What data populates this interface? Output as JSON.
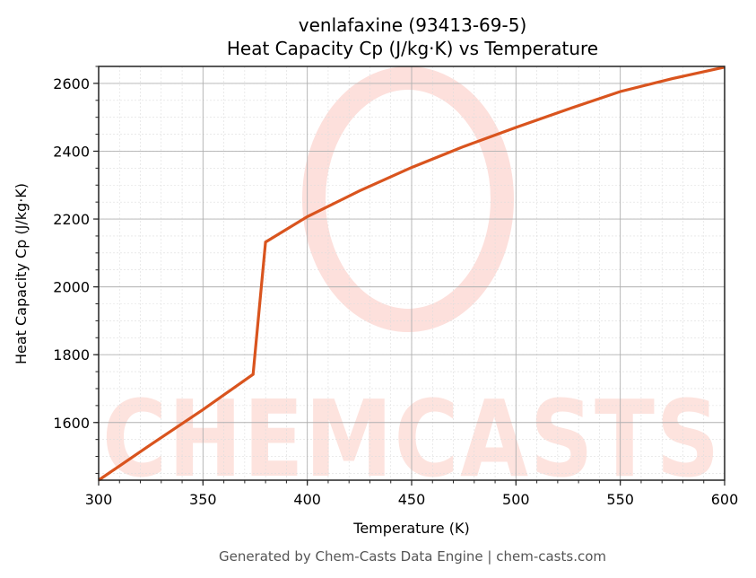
{
  "chart_data": {
    "type": "line",
    "title": "venlafaxine (93413-69-5)",
    "subtitle": "Heat Capacity Cp (J/kg·K) vs Temperature",
    "xlabel": "Temperature (K)",
    "ylabel": "Heat Capacity Cp (J/kg·K)",
    "xlim": [
      300,
      600
    ],
    "ylim": [
      1430,
      2650
    ],
    "x_ticks": [
      300,
      350,
      400,
      450,
      500,
      550,
      600
    ],
    "y_ticks": [
      1600,
      1800,
      2000,
      2200,
      2400,
      2600
    ],
    "grid": true,
    "minor_grid": true,
    "legend": null,
    "series": [
      {
        "name": "Cp",
        "color": "#d9541e",
        "x": [
          300,
          325,
          350,
          374,
          380,
          400,
          425,
          450,
          475,
          500,
          525,
          550,
          575,
          600
        ],
        "values": [
          1430,
          1535,
          1638,
          1742,
          2132,
          2207,
          2283,
          2352,
          2414,
          2470,
          2524,
          2576,
          2614,
          2648
        ]
      }
    ],
    "annotations": [],
    "watermark": "CHEMCASTS"
  },
  "footer": "Generated by Chem-Casts Data Engine | chem-casts.com"
}
